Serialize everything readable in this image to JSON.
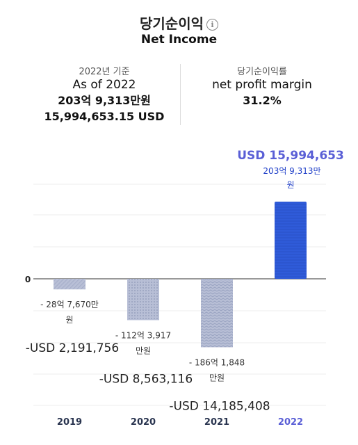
{
  "header": {
    "title_ko": "당기순이익",
    "info_icon": "info-icon",
    "title_en": "Net Income"
  },
  "stats": {
    "left": {
      "label_ko": "2022년 기준",
      "label_en": "As of 2022",
      "value_krw": "203억 9,313만원",
      "value_usd": "15,994,653.15 USD"
    },
    "right": {
      "label_ko": "당기순이익률",
      "label_en": "net profit margin",
      "value": "31.2%"
    }
  },
  "chart_data": {
    "type": "bar",
    "categories": [
      "2019",
      "2020",
      "2021",
      "2022"
    ],
    "values": [
      -2191756,
      -8563116,
      -14185408,
      15994653
    ],
    "zero_label": "0",
    "labels_krw": [
      [
        "- 28억 7,670만",
        "원"
      ],
      [
        "- 112억 3,917",
        "만원"
      ],
      [
        "- 186억 1,848",
        "만원"
      ],
      [
        "203억 9,313만",
        "원"
      ]
    ],
    "labels_usd": [
      "-USD 2,191,756",
      "-USD 8,563,116",
      "-USD 14,185,408",
      "USD 15,994,653"
    ],
    "colors": {
      "positive": "#2f5bd9",
      "negative": "#b2bad2",
      "highlight_text": "#5a5fd6",
      "axis": "#333333",
      "grid": "#eeeeee"
    }
  }
}
